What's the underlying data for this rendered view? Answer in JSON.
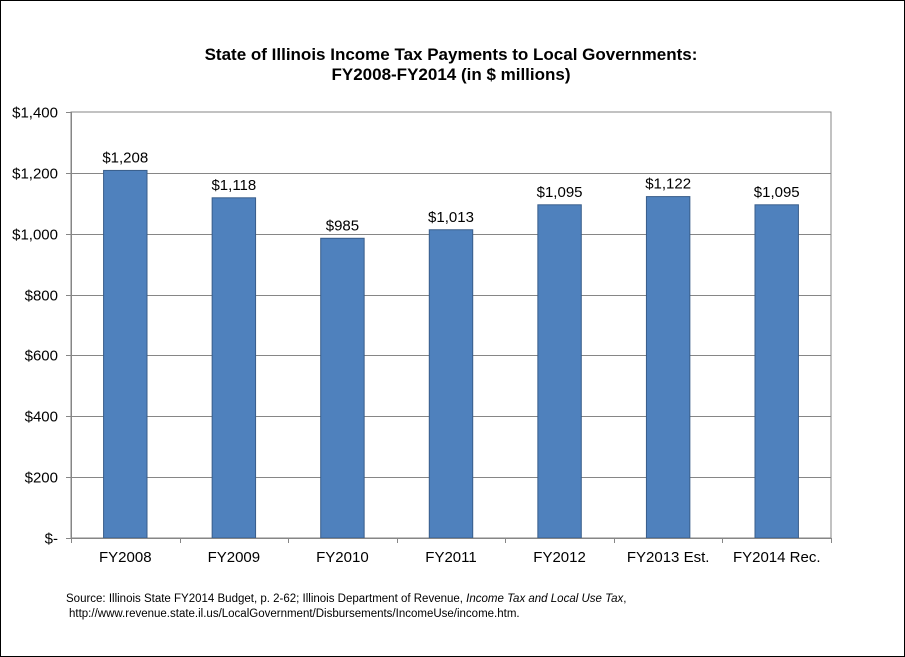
{
  "chart_data": {
    "type": "bar",
    "title": "State of Illinois Income Tax Payments to Local Governments:",
    "subtitle": "FY2008-FY2014 (in $ millions)",
    "categories": [
      "FY2008",
      "FY2009",
      "FY2010",
      "FY2011",
      "FY2012",
      "FY2013 Est.",
      "FY2014 Rec."
    ],
    "values": [
      1208,
      1118,
      985,
      1013,
      1095,
      1122,
      1095
    ],
    "data_labels": [
      "$1,208",
      "$1,118",
      "$985",
      "$1,013",
      "$1,095",
      "$1,122",
      "$1,095"
    ],
    "ylim": [
      0,
      1400
    ],
    "yticks": [
      0,
      200,
      400,
      600,
      800,
      1000,
      1200,
      1400
    ],
    "ytick_labels": [
      "$-",
      "$200",
      "$400",
      "$600",
      "$800",
      "$1,000",
      "$1,200",
      "$1,400"
    ],
    "xlabel": "",
    "ylabel": "",
    "grid": true,
    "legend": "none",
    "bar_color": "#4F81BD"
  },
  "source": {
    "prefix": "Source: Illinois State FY2014 Budget, p. 2-62; Illinois Department of Revenue, ",
    "italic": "Income Tax and Local Use Tax",
    "suffix": ",",
    "url": "http://www.revenue.state.il.us/LocalGovernment/Disbursements/IncomeUse/income.htm."
  }
}
